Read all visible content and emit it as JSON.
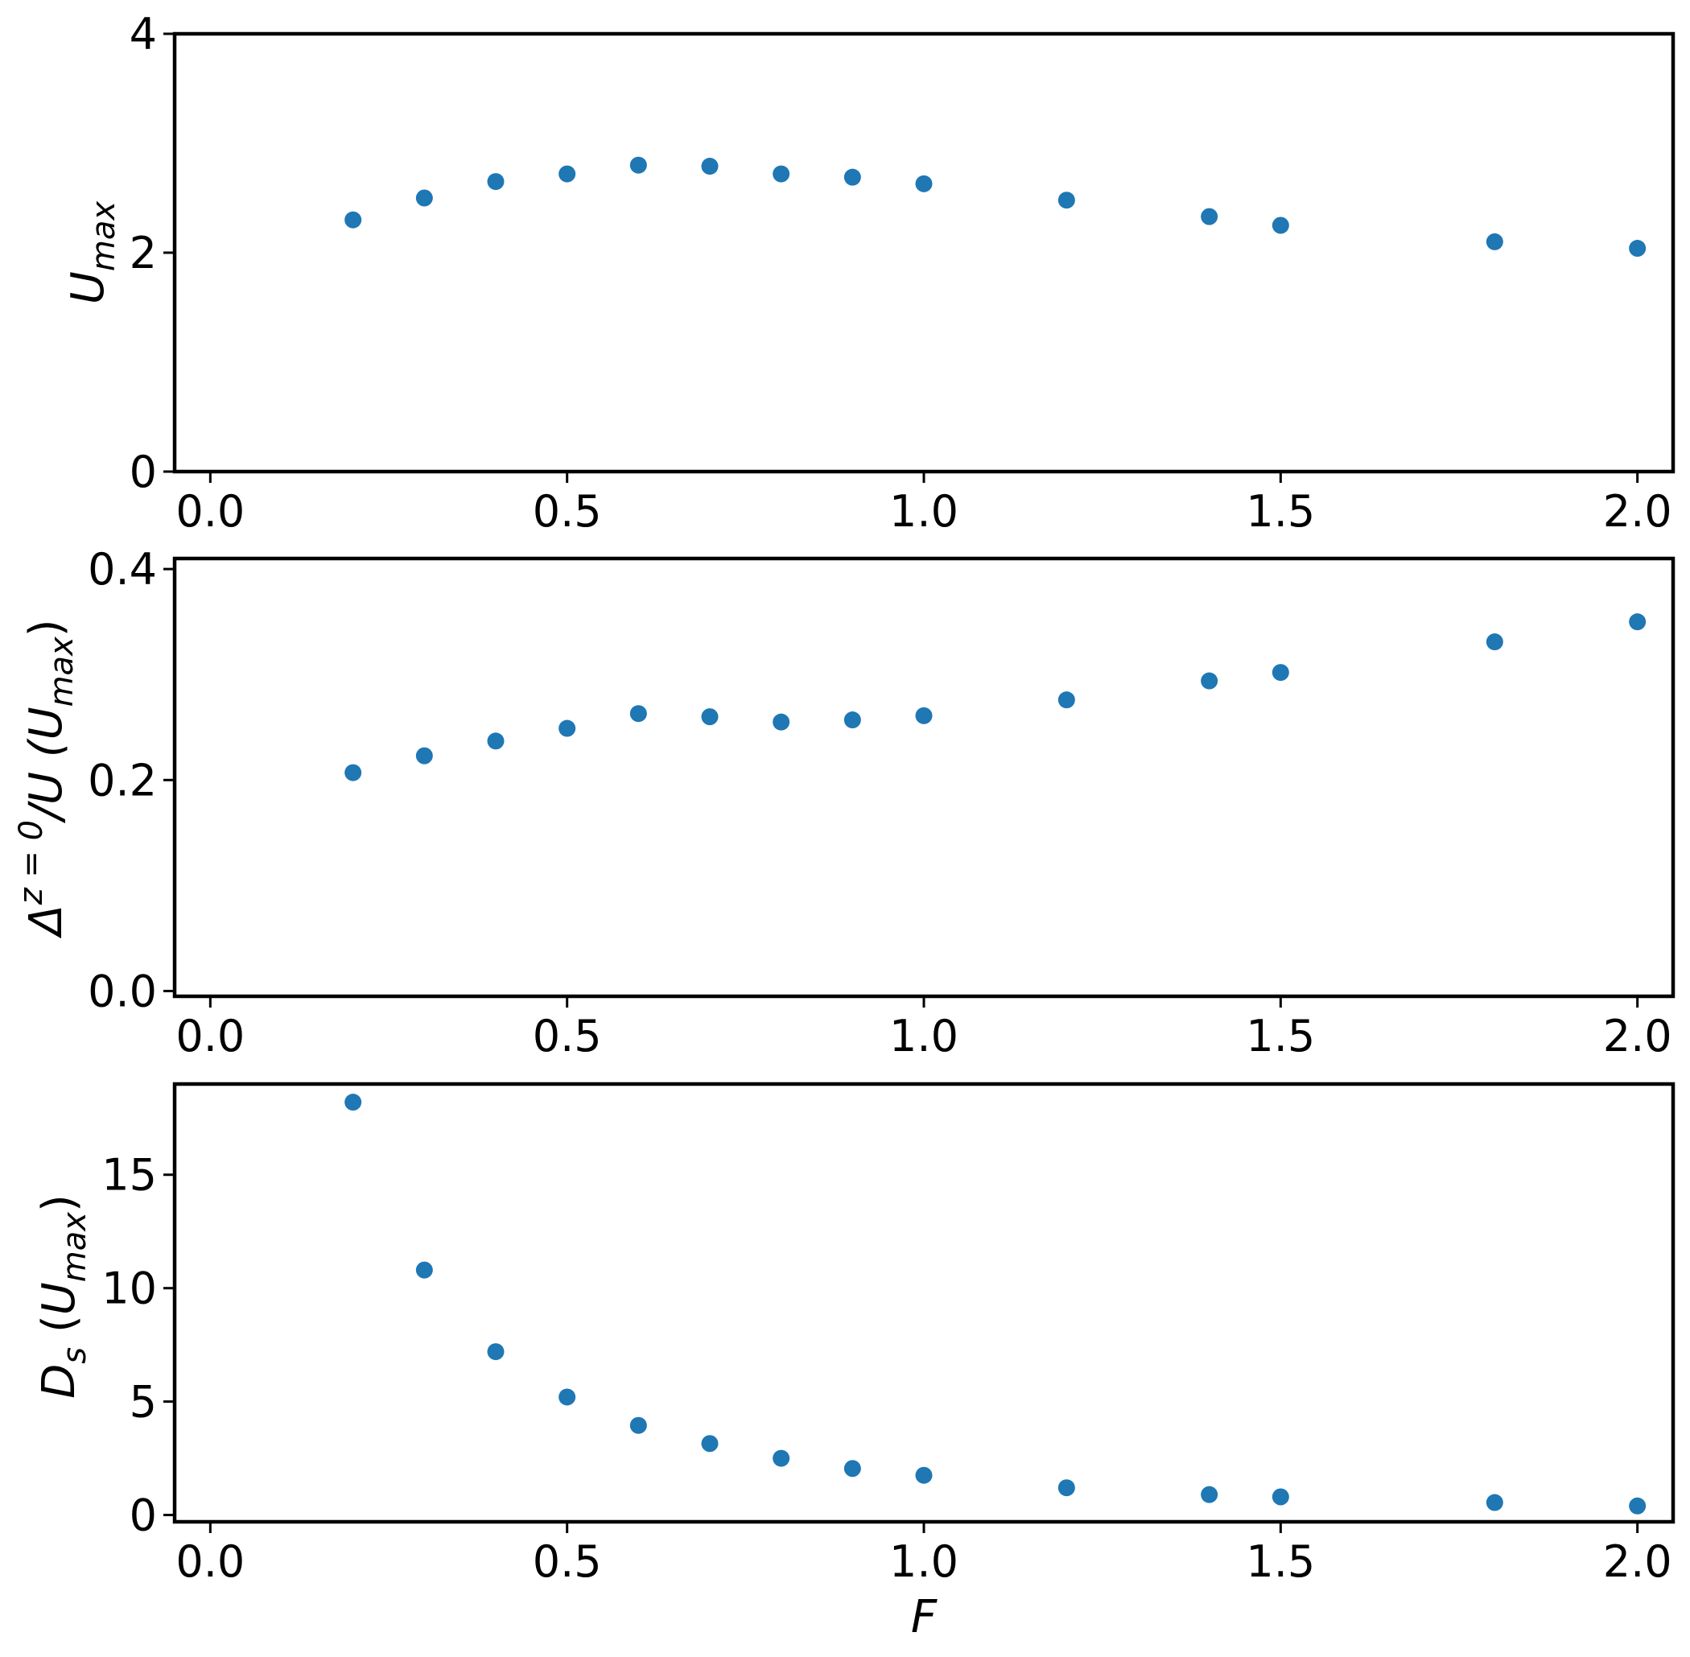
{
  "colors": {
    "marker": "#1f77b4",
    "axes": "#000000",
    "background": "#ffffff"
  },
  "chart_data": [
    {
      "type": "scatter",
      "ylabel_main": "U",
      "ylabel_sub": "max",
      "xlim": [
        -0.05,
        2.05
      ],
      "ylim": [
        0,
        4
      ],
      "xticks": [
        0.0,
        0.5,
        1.0,
        1.5,
        2.0
      ],
      "xtick_labels": [
        "0.0",
        "0.5",
        "1.0",
        "1.5",
        "2.0"
      ],
      "yticks": [
        0,
        2,
        4
      ],
      "ytick_labels": [
        "0",
        "2",
        "4"
      ],
      "grid": false,
      "series": [
        {
          "x": [
            0.2,
            0.3,
            0.4,
            0.5,
            0.6,
            0.7,
            0.8,
            0.9,
            1.0,
            1.2,
            1.4,
            1.5,
            1.8,
            2.0
          ],
          "y": [
            2.3,
            2.5,
            2.65,
            2.72,
            2.8,
            2.79,
            2.72,
            2.69,
            2.63,
            2.48,
            2.33,
            2.25,
            2.1,
            2.04
          ]
        }
      ]
    },
    {
      "type": "scatter",
      "ylabel_delta": "Δ",
      "ylabel_sup": "z = 0",
      "ylabel_mid": "/U (",
      "ylabel_u": "U",
      "ylabel_sub": "max",
      "ylabel_close": ")",
      "xlim": [
        -0.05,
        2.05
      ],
      "ylim": [
        -0.005,
        0.41
      ],
      "xticks": [
        0.0,
        0.5,
        1.0,
        1.5,
        2.0
      ],
      "xtick_labels": [
        "0.0",
        "0.5",
        "1.0",
        "1.5",
        "2.0"
      ],
      "yticks": [
        0.0,
        0.2,
        0.4
      ],
      "ytick_labels": [
        "0.0",
        "0.2",
        "0.4"
      ],
      "grid": false,
      "series": [
        {
          "x": [
            0.2,
            0.3,
            0.4,
            0.5,
            0.6,
            0.7,
            0.8,
            0.9,
            1.0,
            1.2,
            1.4,
            1.5,
            1.8,
            2.0
          ],
          "y": [
            0.207,
            0.223,
            0.237,
            0.249,
            0.263,
            0.26,
            0.255,
            0.257,
            0.261,
            0.276,
            0.294,
            0.302,
            0.331,
            0.35
          ]
        }
      ]
    },
    {
      "type": "scatter",
      "ylabel_main": "D",
      "ylabel_sub": "s",
      "ylabel_open": " (",
      "ylabel_u": "U",
      "ylabel_usub": "max",
      "ylabel_close": ")",
      "xlabel": "F",
      "xlim": [
        -0.05,
        2.05
      ],
      "ylim": [
        -0.3,
        19.0
      ],
      "xticks": [
        0.0,
        0.5,
        1.0,
        1.5,
        2.0
      ],
      "xtick_labels": [
        "0.0",
        "0.5",
        "1.0",
        "1.5",
        "2.0"
      ],
      "yticks": [
        0,
        5,
        10,
        15
      ],
      "ytick_labels": [
        "0",
        "5",
        "10",
        "15"
      ],
      "grid": false,
      "series": [
        {
          "x": [
            0.2,
            0.3,
            0.4,
            0.5,
            0.6,
            0.7,
            0.8,
            0.9,
            1.0,
            1.2,
            1.4,
            1.5,
            1.8,
            2.0
          ],
          "y": [
            18.2,
            10.8,
            7.2,
            5.2,
            3.95,
            3.15,
            2.5,
            2.05,
            1.75,
            1.2,
            0.9,
            0.8,
            0.55,
            0.4
          ]
        }
      ]
    }
  ]
}
